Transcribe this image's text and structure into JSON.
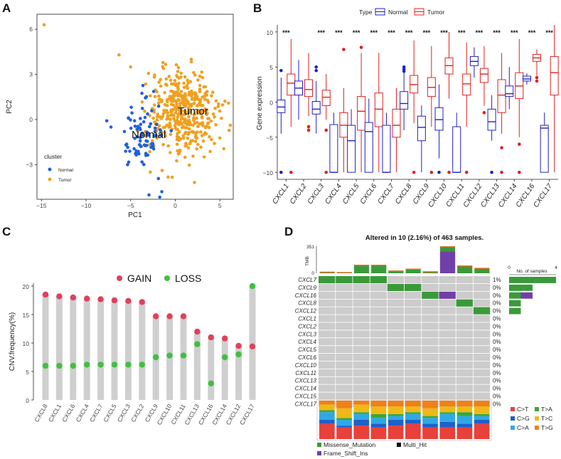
{
  "panels": {
    "a": "A",
    "b": "B",
    "c": "C",
    "d": "D"
  },
  "pca": {
    "xlabel": "PC1",
    "ylabel": "PC2",
    "xlim": [
      -15.5,
      6.5
    ],
    "ylim": [
      -5.3,
      7.0
    ],
    "xticks": [
      -15,
      -10,
      -5,
      0,
      5
    ],
    "yticks": [
      -3,
      0,
      3,
      6
    ],
    "legend_title": "cluster",
    "legend_items": [
      "Normal",
      "Tumor"
    ],
    "normal_label": "Normal",
    "tumor_label": "Tumor",
    "colors": {
      "normal": "#1f5fe0",
      "tumor": "#f0a020"
    },
    "normal_center": [
      -3.5,
      -1.0
    ],
    "normal_spread": [
      1.2,
      1.3
    ],
    "normal_count": 85,
    "tumor_center": [
      0.8,
      0.5
    ],
    "tumor_spread": [
      1.9,
      1.4
    ],
    "tumor_count": 420,
    "outliers": [
      {
        "group": "tumor",
        "x": -14.7,
        "y": 6.3
      },
      {
        "group": "tumor",
        "x": -6.3,
        "y": 4.3
      },
      {
        "group": "tumor",
        "x": -5.0,
        "y": 3.5
      },
      {
        "group": "normal",
        "x": -7.2,
        "y": -0.5
      },
      {
        "group": "normal",
        "x": -1.5,
        "y": -4.8
      }
    ]
  },
  "chart_data": [
    {
      "type": "box",
      "title": "",
      "ylabel": "Gene expression",
      "ylim": [
        -11,
        11
      ],
      "yticks": [
        -10,
        -5,
        0,
        5,
        10
      ],
      "legend_title": "Type",
      "legend": [
        "Normal",
        "Tumor"
      ],
      "colors": {
        "normal": "#2020c8",
        "tumor": "#e02020"
      },
      "categories": [
        "CXCL1",
        "CXCL2",
        "CXCL3",
        "CXCL4",
        "CXCL5",
        "CXCL6",
        "CXCL7",
        "CXCL8",
        "CXCL9",
        "CXCL10",
        "CXCL11",
        "CXCL12",
        "CXCL13",
        "CXCL14",
        "CXCL16",
        "CXCL17"
      ],
      "significance": [
        "***",
        "",
        "***",
        "***",
        "***",
        "***",
        "***",
        "***",
        "***",
        "***",
        "***",
        "***",
        "***",
        "***",
        "***",
        "***"
      ],
      "normal": [
        {
          "min": -4.5,
          "q1": -1.5,
          "median": -0.7,
          "q3": 0.3,
          "max": 3.5,
          "outliers": [
            4.5,
            -10
          ]
        },
        {
          "min": -2.5,
          "q1": 1.0,
          "median": 2.0,
          "q3": 3.0,
          "max": 6.0,
          "outliers": []
        },
        {
          "min": -4.5,
          "q1": -1.7,
          "median": -1.0,
          "q3": 0.1,
          "max": 3.0,
          "outliers": [
            4.5,
            5.0
          ]
        },
        {
          "min": -10,
          "q1": -10,
          "median": -10,
          "q3": -3.2,
          "max": -1.5,
          "outliers": []
        },
        {
          "min": -10,
          "q1": -10,
          "median": -5.5,
          "q3": -3.3,
          "max": -1.0,
          "outliers": []
        },
        {
          "min": -10,
          "q1": -10,
          "median": -4.2,
          "q3": -2.9,
          "max": 0.5,
          "outliers": []
        },
        {
          "min": -10,
          "q1": -10,
          "median": -10,
          "q3": -3.3,
          "max": -1.5,
          "outliers": []
        },
        {
          "min": -4.0,
          "q1": -1.0,
          "median": -0.2,
          "q3": 1.5,
          "max": 4.5,
          "outliers": [
            5.0,
            4.7,
            4.4
          ]
        },
        {
          "min": -10,
          "q1": -5.5,
          "median": -3.6,
          "q3": -2.0,
          "max": -0.5,
          "outliers": []
        },
        {
          "min": -8.0,
          "q1": -4.0,
          "median": -2.5,
          "q3": -0.8,
          "max": 2.5,
          "outliers": [
            -10
          ]
        },
        {
          "min": -10,
          "q1": -10,
          "median": -10,
          "q3": -3.5,
          "max": -1.5,
          "outliers": []
        },
        {
          "min": 3.5,
          "q1": 5.2,
          "median": 5.8,
          "q3": 6.5,
          "max": 7.8,
          "outliers": []
        },
        {
          "min": -5.5,
          "q1": -4.0,
          "median": -2.8,
          "q3": -1.0,
          "max": 1.0,
          "outliers": [
            -10
          ]
        },
        {
          "min": -1.0,
          "q1": 0.8,
          "median": 1.2,
          "q3": 2.3,
          "max": 5.0,
          "outliers": []
        },
        {
          "min": 2.5,
          "q1": 3.0,
          "median": 3.3,
          "q3": 3.7,
          "max": 4.1,
          "outliers": []
        },
        {
          "min": -10,
          "q1": -10,
          "median": -3.7,
          "q3": -3.3,
          "max": -1.5,
          "outliers": []
        }
      ],
      "tumor": [
        {
          "min": -3.5,
          "q1": 1.0,
          "median": 2.7,
          "q3": 4.0,
          "max": 9.0,
          "outliers": [
            -10
          ]
        },
        {
          "min": -2.0,
          "q1": 0.8,
          "median": 1.8,
          "q3": 3.2,
          "max": 7.0,
          "outliers": [
            -3.5,
            -4.0
          ]
        },
        {
          "min": -2.5,
          "q1": -0.5,
          "median": 0.7,
          "q3": 1.7,
          "max": 4.0,
          "outliers": [
            -4.0,
            -10
          ]
        },
        {
          "min": -10,
          "q1": -5.0,
          "median": -3.3,
          "q3": -1.5,
          "max": 2.0,
          "outliers": [
            7.5
          ]
        },
        {
          "min": -10,
          "q1": -4.0,
          "median": -1.3,
          "q3": 0.8,
          "max": 7.0,
          "outliers": [
            7.8
          ]
        },
        {
          "min": -10,
          "q1": -3.5,
          "median": -1.0,
          "q3": 1.3,
          "max": 7.0,
          "outliers": []
        },
        {
          "min": -10,
          "q1": -5.0,
          "median": -3.3,
          "q3": -1.0,
          "max": 2.0,
          "outliers": []
        },
        {
          "min": -3.0,
          "q1": 1.3,
          "median": 2.5,
          "q3": 3.8,
          "max": 8.8,
          "outliers": [
            -10
          ]
        },
        {
          "min": -3.5,
          "q1": 0.8,
          "median": 2.1,
          "q3": 3.5,
          "max": 8.0,
          "outliers": [
            -10
          ]
        },
        {
          "min": 0.5,
          "q1": 4.0,
          "median": 5.2,
          "q3": 6.3,
          "max": 10.0,
          "outliers": [
            -10
          ]
        },
        {
          "min": -3.5,
          "q1": 1.0,
          "median": 2.6,
          "q3": 4.0,
          "max": 8.5,
          "outliers": [
            -10
          ]
        },
        {
          "min": -0.5,
          "q1": 2.8,
          "median": 4.0,
          "q3": 4.8,
          "max": 8.0,
          "outliers": [
            -1.5
          ]
        },
        {
          "min": -4.5,
          "q1": -1.5,
          "median": 1.0,
          "q3": 3.2,
          "max": 7.0,
          "outliers": [
            -6.5,
            -10
          ]
        },
        {
          "min": -5.0,
          "q1": 0.5,
          "median": 2.3,
          "q3": 4.2,
          "max": 9.0,
          "outliers": [
            -6.0,
            -10
          ]
        },
        {
          "min": 3.8,
          "q1": 5.8,
          "median": 6.3,
          "q3": 6.8,
          "max": 7.5,
          "outliers": [
            3.0,
            3.5
          ]
        },
        {
          "min": -10,
          "q1": 1.0,
          "median": 4.2,
          "q3": 6.5,
          "max": 11.0,
          "outliers": []
        }
      ]
    },
    {
      "type": "lollipop",
      "ylabel": "CNV.frequency(%)",
      "ylim": [
        0,
        20.5
      ],
      "yticks": [
        0,
        5,
        10,
        15,
        20
      ],
      "legend": [
        "GAIN",
        "LOSS"
      ],
      "colors": {
        "gain": "#e0405a",
        "loss": "#40c040",
        "stem": "#cfcfcf"
      },
      "categories": [
        "CXCL8",
        "CXCL1",
        "CXCL6",
        "CXCL4",
        "CXCL7",
        "CXCL5",
        "CXCL3",
        "CXCL2",
        "CXCL9",
        "CXCL10",
        "CXCL11",
        "CXCL13",
        "CXCL16",
        "CXCL14",
        "CXCL12",
        "CXCL17"
      ],
      "gain": [
        18.5,
        18.2,
        18.0,
        17.8,
        17.7,
        17.5,
        17.4,
        17.2,
        14.7,
        14.7,
        14.7,
        12.0,
        11.0,
        10.8,
        9.5,
        9.4
      ],
      "loss": [
        6.0,
        6.0,
        6.0,
        6.2,
        6.2,
        6.2,
        6.2,
        6.2,
        7.5,
        7.8,
        7.8,
        9.8,
        2.9,
        7.5,
        8.0,
        20.0
      ]
    },
    {
      "type": "oncoplot",
      "title": "Altered in 10 (2.16%) of 463 samples.",
      "tmb_label": "TMB",
      "tmb_ticks": [
        "351",
        "0"
      ],
      "tmb_max": 351,
      "tmb": [
        20,
        15,
        110,
        110,
        35,
        60,
        25,
        351,
        100,
        70
      ],
      "tmb_tops": [
        1,
        1,
        1,
        1,
        1,
        1,
        1,
        1,
        1,
        1
      ],
      "tmb_frameshift": [
        0,
        0,
        0,
        0,
        0,
        0,
        0,
        280,
        0,
        0
      ],
      "genes": [
        "CXCL7",
        "CXCL9",
        "CXCL16",
        "CXCL8",
        "CXCL12",
        "CXCL1",
        "CXCL2",
        "CXCL3",
        "CXCL4",
        "CXCL5",
        "CXCL6",
        "CXCL10",
        "CXCL11",
        "CXCL13",
        "CXCL14",
        "CXCL15",
        "CXCL17"
      ],
      "percent": [
        "1%",
        "0%",
        "0%",
        "0%",
        "0%",
        "0%",
        "0%",
        "0%",
        "0%",
        "0%",
        "0%",
        "0%",
        "0%",
        "0%",
        "0%",
        "0%",
        "0%"
      ],
      "mutations": {
        "CXCL7": [
          "M",
          "M",
          "M",
          "M",
          "",
          "",
          "",
          "",
          "",
          ""
        ],
        "CXCL9": [
          "",
          "",
          "",
          "",
          "M",
          "M",
          "",
          "",
          "",
          ""
        ],
        "CXCL16": [
          "",
          "",
          "",
          "",
          "",
          "",
          "M",
          "F",
          "",
          ""
        ],
        "CXCL8": [
          "",
          "",
          "",
          "",
          "",
          "",
          "",
          "",
          "M",
          ""
        ],
        "CXCL12": [
          "",
          "",
          "",
          "",
          "",
          "",
          "",
          "",
          "",
          "M"
        ]
      },
      "samples_label": "No. of samples",
      "samples_axis": [
        "0",
        "4"
      ],
      "samples_max": 4,
      "samples": [
        {
          "gene": "CXCL7",
          "missense": 4,
          "frameshift": 0
        },
        {
          "gene": "CXCL9",
          "missense": 2,
          "frameshift": 0
        },
        {
          "gene": "CXCL16",
          "missense": 1,
          "frameshift": 1
        },
        {
          "gene": "CXCL8",
          "missense": 1,
          "frameshift": 0
        },
        {
          "gene": "CXCL12",
          "missense": 1,
          "frameshift": 0
        }
      ],
      "titv_classes": [
        "C>T",
        "C>G",
        "C>A",
        "T>A",
        "T>C",
        "T>G"
      ],
      "titv_colors": [
        "#e8403a",
        "#2060c8",
        "#30a8e8",
        "#38a838",
        "#f0b818",
        "#f08018"
      ],
      "titv": [
        [
          40,
          10,
          20,
          5,
          15,
          10
        ],
        [
          30,
          5,
          15,
          5,
          25,
          20
        ],
        [
          35,
          15,
          15,
          5,
          20,
          10
        ],
        [
          30,
          10,
          15,
          10,
          20,
          15
        ],
        [
          35,
          15,
          10,
          5,
          20,
          15
        ],
        [
          40,
          10,
          15,
          5,
          15,
          15
        ],
        [
          30,
          10,
          15,
          5,
          20,
          20
        ],
        [
          30,
          15,
          20,
          5,
          15,
          15
        ],
        [
          30,
          10,
          20,
          10,
          15,
          15
        ],
        [
          40,
          10,
          10,
          5,
          20,
          15
        ]
      ],
      "legend": [
        "Missense_Mutation",
        "Multi_Hit",
        "Frame_Shift_Ins"
      ],
      "legend_colors": [
        "#3a9a3a",
        "#111111",
        "#7040a8"
      ],
      "bg_color": "#cccccc"
    }
  ]
}
